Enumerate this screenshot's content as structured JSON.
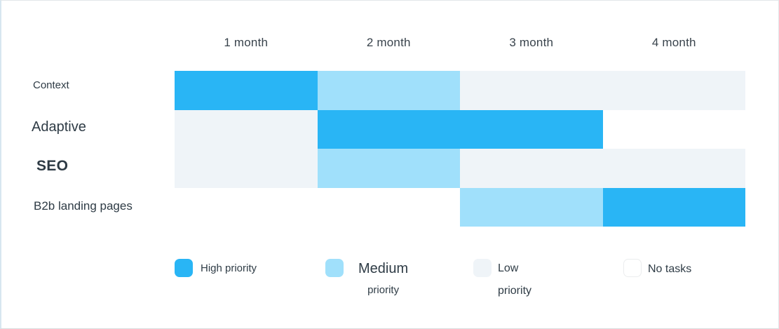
{
  "chart_data": {
    "type": "heatmap",
    "title": "",
    "columns": [
      "1 month",
      "2 month",
      "3 month",
      "4 month"
    ],
    "rows": [
      {
        "label": "Context",
        "values": [
          "high",
          "medium",
          "low",
          "low"
        ]
      },
      {
        "label": "Adaptive",
        "values": [
          "low",
          "high",
          "high",
          "none"
        ]
      },
      {
        "label": "SEO",
        "values": [
          "low",
          "medium",
          "low",
          "low"
        ]
      },
      {
        "label": "B2b landing pages",
        "values": [
          "none",
          "none",
          "medium",
          "high"
        ]
      }
    ],
    "legend": [
      {
        "value": "high",
        "lines": [
          "High priority"
        ]
      },
      {
        "value": "medium",
        "lines": [
          "Medium",
          "priority"
        ]
      },
      {
        "value": "low",
        "lines": [
          "Low",
          "priority"
        ]
      },
      {
        "value": "none",
        "lines": [
          "No tasks"
        ]
      }
    ],
    "colors": {
      "high": "#29B5F5",
      "medium": "#A0E0FB",
      "low": "#EFF4F8",
      "none": "#FFFFFF"
    },
    "legend_position": "bottom",
    "grid": false
  }
}
